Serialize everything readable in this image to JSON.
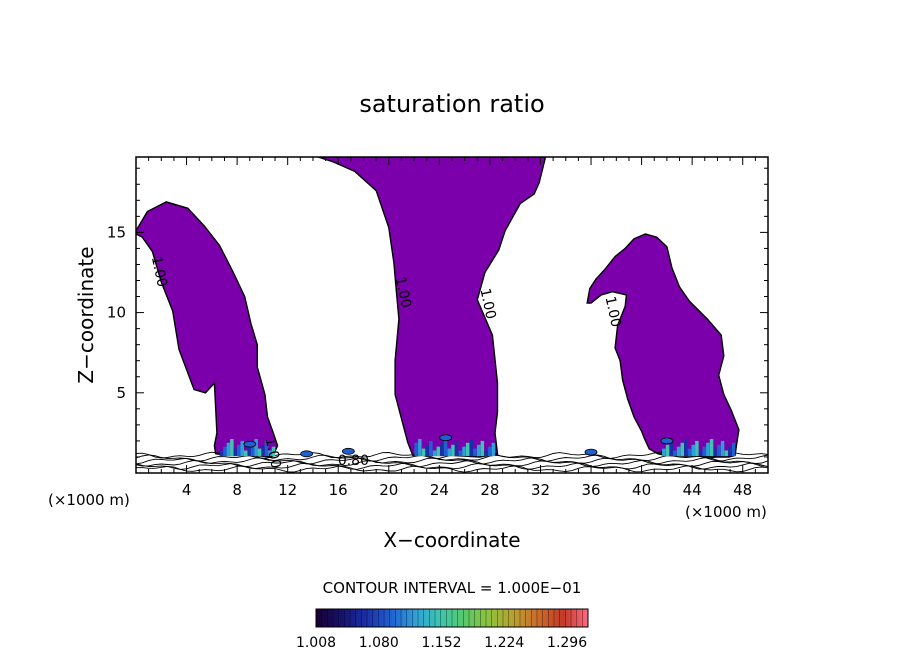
{
  "chart_data": {
    "type": "contour",
    "title": "saturation ratio",
    "xlabel": "X−coordinate",
    "ylabel": "Z−coordinate",
    "x_unit_left": "(×1000 m)",
    "x_unit_right": "(×1000 m)",
    "xlim": [
      0,
      50
    ],
    "ylim": [
      0,
      19.7
    ],
    "x_ticks": [
      4,
      8,
      12,
      16,
      20,
      24,
      28,
      32,
      36,
      40,
      44,
      48
    ],
    "x_tick_labels": [
      "4",
      "8",
      "12",
      "16",
      "20",
      "24",
      "28",
      "32",
      "36",
      "40",
      "44",
      "48"
    ],
    "y_ticks": [
      5,
      10,
      15
    ],
    "y_tick_labels": [
      "5",
      "10",
      "15"
    ],
    "contour_labels": [
      {
        "text": "1.00",
        "x": 1.5,
        "y": 12.5
      },
      {
        "text": "1.00",
        "x": 20.8,
        "y": 11.2
      },
      {
        "text": "1.00",
        "x": 27.5,
        "y": 10.5
      },
      {
        "text": "1.00",
        "x": 37.4,
        "y": 10.0
      },
      {
        "text": "1.00",
        "x": 10.5,
        "y": 1.2
      },
      {
        "text": "0.80",
        "x": 17.2,
        "y": 0.5
      }
    ],
    "contour_interval_text": "CONTOUR INTERVAL = 1.000E−01",
    "colorbar": {
      "tick_labels": [
        "1.008",
        "1.080",
        "1.152",
        "1.224",
        "1.296"
      ],
      "min": 1.008,
      "max": 1.32,
      "colors": [
        "#1a0033",
        "#16116a",
        "#1a2fa6",
        "#1f5fd0",
        "#2f9fd8",
        "#3cc6b0",
        "#58c86a",
        "#8fc23e",
        "#b9a030",
        "#cc6a2a",
        "#c23a28",
        "#ff6a80"
      ]
    },
    "fill_color": "#7b00ab",
    "supersaturated_regions": [
      {
        "name": "plume-left",
        "points": [
          [
            0,
            15.1
          ],
          [
            0.9,
            16.3
          ],
          [
            2.4,
            16.9
          ],
          [
            4.1,
            16.5
          ],
          [
            5.4,
            15.4
          ],
          [
            6.6,
            14.2
          ],
          [
            7.7,
            12.5
          ],
          [
            8.6,
            11.0
          ],
          [
            9.1,
            9.3
          ],
          [
            9.6,
            8.0
          ],
          [
            9.6,
            6.6
          ],
          [
            10.2,
            4.9
          ],
          [
            10.4,
            3.5
          ],
          [
            10.9,
            2.4
          ],
          [
            11.2,
            1.7
          ],
          [
            10.9,
            1.2
          ],
          [
            10.7,
            1.0
          ],
          [
            9.3,
            1.1
          ],
          [
            7.3,
            1.1
          ],
          [
            6.3,
            1.2
          ],
          [
            6.2,
            1.7
          ],
          [
            6.4,
            2.5
          ],
          [
            6.2,
            5.6
          ],
          [
            5.5,
            5.0
          ],
          [
            4.6,
            5.2
          ],
          [
            3.4,
            7.7
          ],
          [
            2.9,
            10.1
          ],
          [
            2.0,
            11.9
          ],
          [
            1.3,
            13.8
          ],
          [
            0.5,
            14.7
          ],
          [
            0,
            14.9
          ]
        ]
      },
      {
        "name": "plume-center",
        "points": [
          [
            14.4,
            19.7
          ],
          [
            32.4,
            19.7
          ],
          [
            31.9,
            18.1
          ],
          [
            31.5,
            17.4
          ],
          [
            30.4,
            16.8
          ],
          [
            29.2,
            15.1
          ],
          [
            28.7,
            13.9
          ],
          [
            27.6,
            12.5
          ],
          [
            27.0,
            10.8
          ],
          [
            28.2,
            8.6
          ],
          [
            28.6,
            5.6
          ],
          [
            28.6,
            3.8
          ],
          [
            28.4,
            2.5
          ],
          [
            28.6,
            1.2
          ],
          [
            27.2,
            1.0
          ],
          [
            25.0,
            1.1
          ],
          [
            21.9,
            1.1
          ],
          [
            21.5,
            1.9
          ],
          [
            21.1,
            3.1
          ],
          [
            20.5,
            4.9
          ],
          [
            20.5,
            7.0
          ],
          [
            20.8,
            9.6
          ],
          [
            20.6,
            11.3
          ],
          [
            20.4,
            13.1
          ],
          [
            20.0,
            15.3
          ],
          [
            19.0,
            17.6
          ],
          [
            17.3,
            18.8
          ],
          [
            15.6,
            19.4
          ],
          [
            14.4,
            19.7
          ]
        ]
      },
      {
        "name": "plume-right",
        "points": [
          [
            35.7,
            10.6
          ],
          [
            35.9,
            11.5
          ],
          [
            36.4,
            12.1
          ],
          [
            37.1,
            12.7
          ],
          [
            37.9,
            13.5
          ],
          [
            38.7,
            14.0
          ],
          [
            39.4,
            14.6
          ],
          [
            40.3,
            14.9
          ],
          [
            41.2,
            14.7
          ],
          [
            42.0,
            14.1
          ],
          [
            42.4,
            12.8
          ],
          [
            43.0,
            11.6
          ],
          [
            43.8,
            10.7
          ],
          [
            45.2,
            9.6
          ],
          [
            46.3,
            8.6
          ],
          [
            46.5,
            7.3
          ],
          [
            46.1,
            6.1
          ],
          [
            46.5,
            4.9
          ],
          [
            47.1,
            3.9
          ],
          [
            47.7,
            2.7
          ],
          [
            47.5,
            1.7
          ],
          [
            47.4,
            1.1
          ],
          [
            46.9,
            1.0
          ],
          [
            45.9,
            1.0
          ],
          [
            43.4,
            1.1
          ],
          [
            41.9,
            1.1
          ],
          [
            41.3,
            1.2
          ],
          [
            40.6,
            1.5
          ],
          [
            40.2,
            2.2
          ],
          [
            40.0,
            2.6
          ],
          [
            39.4,
            3.5
          ],
          [
            38.9,
            4.6
          ],
          [
            38.5,
            5.8
          ],
          [
            38.3,
            7.0
          ],
          [
            37.9,
            7.8
          ],
          [
            38.1,
            9.2
          ],
          [
            38.7,
            10.4
          ],
          [
            38.8,
            11.1
          ],
          [
            37.7,
            11.3
          ],
          [
            36.8,
            11.1
          ],
          [
            36.0,
            10.6
          ],
          [
            35.7,
            10.6
          ]
        ]
      }
    ]
  }
}
